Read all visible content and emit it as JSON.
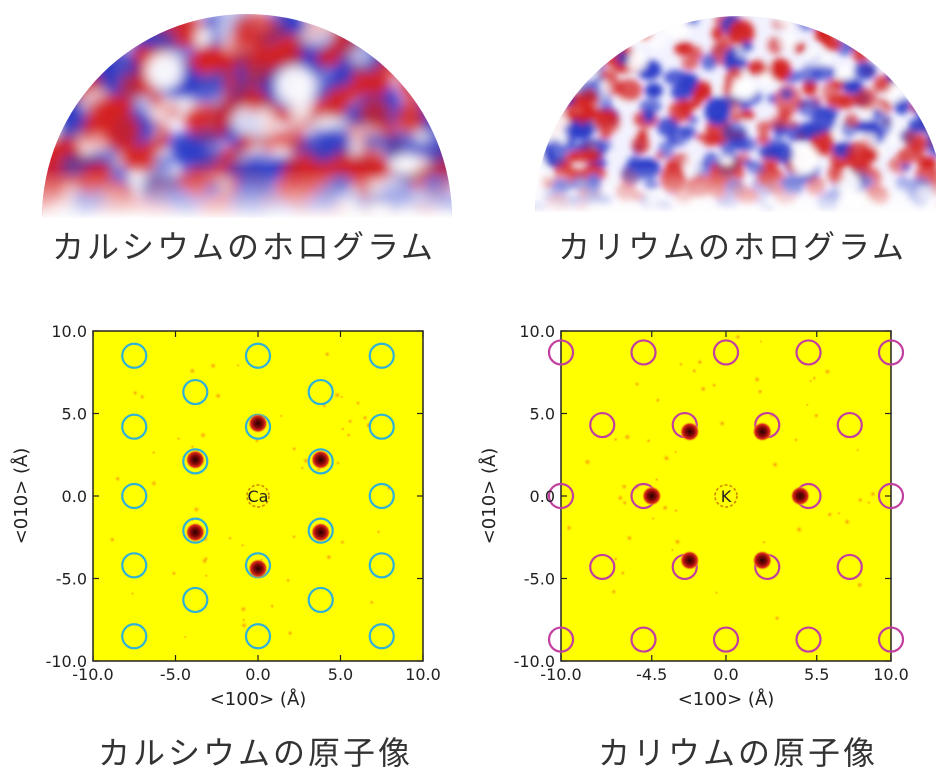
{
  "panels": {
    "calcium": {
      "hologram_caption": "カルシウムのホログラム",
      "image_caption": "カルシウムの原子像",
      "center_label": "Ca",
      "circle_color": "#2fb0d8",
      "atom_positions_angstrom": [
        [
          -3.8,
          2.2
        ],
        [
          3.8,
          2.2
        ],
        [
          -3.8,
          -2.2
        ],
        [
          3.8,
          -2.2
        ],
        [
          0.0,
          4.4
        ],
        [
          0.0,
          -4.4
        ]
      ],
      "circle_positions_angstrom": [
        [
          -7.5,
          8.5
        ],
        [
          0.0,
          8.5
        ],
        [
          7.5,
          8.5
        ],
        [
          -3.8,
          6.3
        ],
        [
          3.8,
          6.3
        ],
        [
          -7.5,
          4.2
        ],
        [
          0.0,
          4.2
        ],
        [
          7.5,
          4.2
        ],
        [
          -3.8,
          2.1
        ],
        [
          3.8,
          2.1
        ],
        [
          -7.5,
          0.0
        ],
        [
          7.5,
          0.0
        ],
        [
          -3.8,
          -2.1
        ],
        [
          3.8,
          -2.1
        ],
        [
          -7.5,
          -4.2
        ],
        [
          0.0,
          -4.2
        ],
        [
          7.5,
          -4.2
        ],
        [
          -3.8,
          -6.3
        ],
        [
          3.8,
          -6.3
        ],
        [
          -7.5,
          -8.5
        ],
        [
          0.0,
          -8.5
        ],
        [
          7.5,
          -8.5
        ]
      ],
      "x_ticks": [
        "-10.0",
        "-5.0",
        "0.0",
        "5.0",
        "10.0"
      ],
      "y_ticks": [
        "10.0",
        "5.0",
        "0.0",
        "-5.0",
        "-10.0"
      ],
      "xlabel": "<100> (Å)",
      "ylabel": "<010> (Å)"
    },
    "potassium": {
      "hologram_caption": "カリウムのホログラム",
      "image_caption": "カリウムの原子像",
      "center_label": "K",
      "circle_color": "#c23fa0",
      "atom_positions_angstrom": [
        [
          -4.5,
          0.0
        ],
        [
          4.5,
          0.0
        ],
        [
          -2.2,
          3.9
        ],
        [
          2.2,
          3.9
        ],
        [
          -2.2,
          -3.9
        ],
        [
          2.2,
          -3.9
        ]
      ],
      "circle_positions_angstrom": [
        [
          -10.0,
          8.7
        ],
        [
          -5.0,
          8.7
        ],
        [
          0.0,
          8.7
        ],
        [
          5.0,
          8.7
        ],
        [
          10.0,
          8.7
        ],
        [
          -7.5,
          4.3
        ],
        [
          -2.5,
          4.3
        ],
        [
          2.5,
          4.3
        ],
        [
          7.5,
          4.3
        ],
        [
          -10.0,
          0.0
        ],
        [
          -5.0,
          0.0
        ],
        [
          5.0,
          0.0
        ],
        [
          10.0,
          0.0
        ],
        [
          -7.5,
          -4.3
        ],
        [
          -2.5,
          -4.3
        ],
        [
          2.5,
          -4.3
        ],
        [
          7.5,
          -4.3
        ],
        [
          -10.0,
          -8.7
        ],
        [
          -5.0,
          -8.7
        ],
        [
          0.0,
          -8.7
        ],
        [
          5.0,
          -8.7
        ],
        [
          10.0,
          -8.7
        ]
      ],
      "x_ticks": [
        "-10.0",
        "-4.5",
        "0.0",
        "5.5",
        "10.0"
      ],
      "y_ticks": [
        "10.0",
        "5.0",
        "0.0",
        "-5.0",
        "-10.0"
      ],
      "xlabel": "<100> (Å)",
      "ylabel": "<010> (Å)"
    }
  },
  "colors": {
    "background_map": "#ffff00",
    "atom_core": "#2a0000",
    "atom_halo": "#e0301a",
    "hologram_red": "#d42020",
    "hologram_blue": "#2a3bc8"
  }
}
